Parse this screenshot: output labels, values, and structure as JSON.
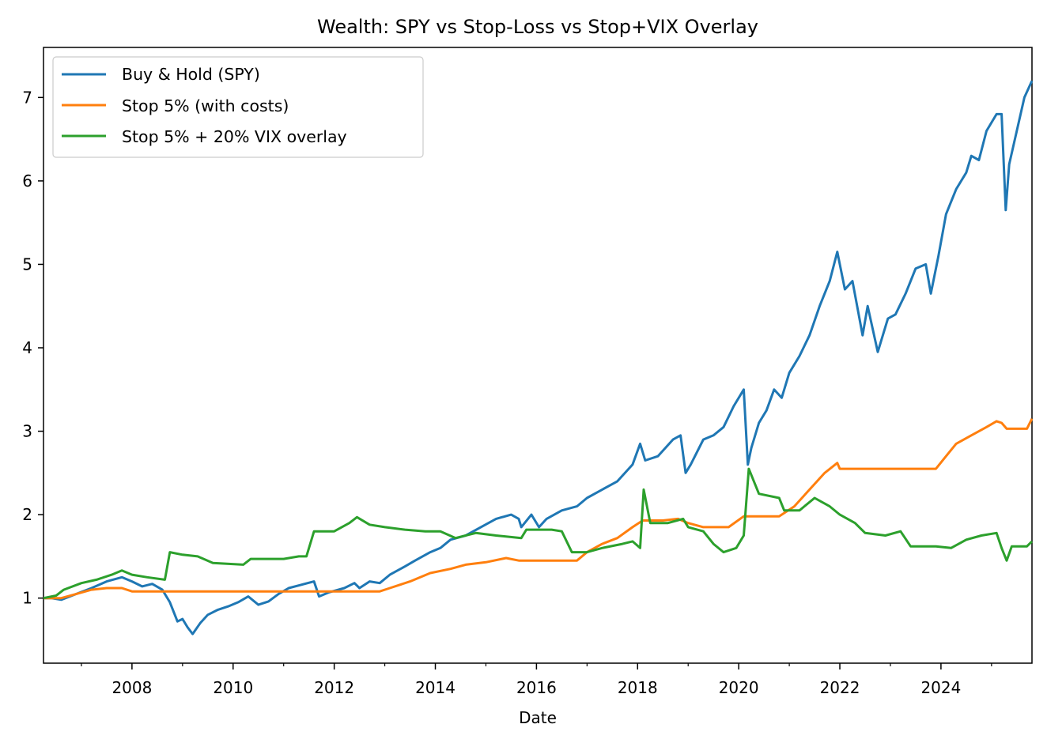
{
  "chart_data": {
    "type": "line",
    "title": "Wealth: SPY vs Stop-Loss vs Stop+VIX Overlay",
    "xlabel": "Date",
    "ylabel": "",
    "xlim": [
      2006.25,
      2025.8
    ],
    "ylim": [
      0.22,
      7.6
    ],
    "x_ticks": [
      2008,
      2010,
      2012,
      2014,
      2016,
      2018,
      2020,
      2022,
      2024
    ],
    "x_tick_labels": [
      "2008",
      "2010",
      "2012",
      "2014",
      "2016",
      "2018",
      "2020",
      "2022",
      "2024"
    ],
    "y_ticks": [
      1,
      2,
      3,
      4,
      5,
      6,
      7
    ],
    "y_tick_labels": [
      "1",
      "2",
      "3",
      "4",
      "5",
      "6",
      "7"
    ],
    "grid": false,
    "legend_position": "top-left",
    "series": [
      {
        "name": "Buy & Hold (SPY)",
        "color": "#1f77b4",
        "points": [
          [
            2006.25,
            1.0
          ],
          [
            2006.4,
            1.0
          ],
          [
            2006.6,
            0.98
          ],
          [
            2006.9,
            1.05
          ],
          [
            2007.2,
            1.12
          ],
          [
            2007.5,
            1.2
          ],
          [
            2007.8,
            1.25
          ],
          [
            2008.0,
            1.2
          ],
          [
            2008.2,
            1.14
          ],
          [
            2008.4,
            1.17
          ],
          [
            2008.6,
            1.1
          ],
          [
            2008.75,
            0.95
          ],
          [
            2008.9,
            0.72
          ],
          [
            2009.0,
            0.75
          ],
          [
            2009.1,
            0.65
          ],
          [
            2009.2,
            0.57
          ],
          [
            2009.35,
            0.7
          ],
          [
            2009.5,
            0.8
          ],
          [
            2009.7,
            0.86
          ],
          [
            2009.9,
            0.9
          ],
          [
            2010.1,
            0.95
          ],
          [
            2010.3,
            1.02
          ],
          [
            2010.5,
            0.92
          ],
          [
            2010.7,
            0.96
          ],
          [
            2010.9,
            1.05
          ],
          [
            2011.1,
            1.12
          ],
          [
            2011.35,
            1.16
          ],
          [
            2011.6,
            1.2
          ],
          [
            2011.7,
            1.02
          ],
          [
            2011.9,
            1.07
          ],
          [
            2012.2,
            1.12
          ],
          [
            2012.4,
            1.18
          ],
          [
            2012.5,
            1.12
          ],
          [
            2012.7,
            1.2
          ],
          [
            2012.9,
            1.18
          ],
          [
            2013.1,
            1.28
          ],
          [
            2013.4,
            1.38
          ],
          [
            2013.6,
            1.45
          ],
          [
            2013.9,
            1.55
          ],
          [
            2014.1,
            1.6
          ],
          [
            2014.3,
            1.7
          ],
          [
            2014.6,
            1.75
          ],
          [
            2014.9,
            1.85
          ],
          [
            2015.2,
            1.95
          ],
          [
            2015.5,
            2.0
          ],
          [
            2015.65,
            1.95
          ],
          [
            2015.7,
            1.85
          ],
          [
            2015.9,
            2.0
          ],
          [
            2016.05,
            1.85
          ],
          [
            2016.2,
            1.95
          ],
          [
            2016.5,
            2.05
          ],
          [
            2016.8,
            2.1
          ],
          [
            2017.0,
            2.2
          ],
          [
            2017.3,
            2.3
          ],
          [
            2017.6,
            2.4
          ],
          [
            2017.9,
            2.6
          ],
          [
            2018.05,
            2.85
          ],
          [
            2018.15,
            2.65
          ],
          [
            2018.4,
            2.7
          ],
          [
            2018.7,
            2.9
          ],
          [
            2018.85,
            2.95
          ],
          [
            2018.95,
            2.5
          ],
          [
            2019.05,
            2.6
          ],
          [
            2019.3,
            2.9
          ],
          [
            2019.5,
            2.95
          ],
          [
            2019.7,
            3.05
          ],
          [
            2019.9,
            3.3
          ],
          [
            2020.1,
            3.5
          ],
          [
            2020.18,
            2.6
          ],
          [
            2020.25,
            2.8
          ],
          [
            2020.4,
            3.1
          ],
          [
            2020.55,
            3.25
          ],
          [
            2020.7,
            3.5
          ],
          [
            2020.85,
            3.4
          ],
          [
            2021.0,
            3.7
          ],
          [
            2021.2,
            3.9
          ],
          [
            2021.4,
            4.15
          ],
          [
            2021.6,
            4.5
          ],
          [
            2021.8,
            4.8
          ],
          [
            2021.95,
            5.15
          ],
          [
            2022.1,
            4.7
          ],
          [
            2022.25,
            4.8
          ],
          [
            2022.45,
            4.15
          ],
          [
            2022.55,
            4.5
          ],
          [
            2022.75,
            3.95
          ],
          [
            2022.95,
            4.35
          ],
          [
            2023.1,
            4.4
          ],
          [
            2023.3,
            4.65
          ],
          [
            2023.5,
            4.95
          ],
          [
            2023.7,
            5.0
          ],
          [
            2023.8,
            4.65
          ],
          [
            2023.95,
            5.1
          ],
          [
            2024.1,
            5.6
          ],
          [
            2024.3,
            5.9
          ],
          [
            2024.5,
            6.1
          ],
          [
            2024.6,
            6.3
          ],
          [
            2024.75,
            6.25
          ],
          [
            2024.9,
            6.6
          ],
          [
            2025.1,
            6.8
          ],
          [
            2025.2,
            6.8
          ],
          [
            2025.28,
            5.65
          ],
          [
            2025.35,
            6.2
          ],
          [
            2025.5,
            6.6
          ],
          [
            2025.65,
            7.0
          ],
          [
            2025.8,
            7.2
          ]
        ]
      },
      {
        "name": "Stop 5% (with costs)",
        "color": "#ff7f0e",
        "points": [
          [
            2006.25,
            1.0
          ],
          [
            2006.6,
            1.0
          ],
          [
            2006.9,
            1.05
          ],
          [
            2007.2,
            1.1
          ],
          [
            2007.5,
            1.12
          ],
          [
            2007.8,
            1.12
          ],
          [
            2008.0,
            1.08
          ],
          [
            2008.3,
            1.08
          ],
          [
            2012.9,
            1.08
          ],
          [
            2013.1,
            1.12
          ],
          [
            2013.5,
            1.2
          ],
          [
            2013.9,
            1.3
          ],
          [
            2014.3,
            1.35
          ],
          [
            2014.6,
            1.4
          ],
          [
            2015.0,
            1.43
          ],
          [
            2015.4,
            1.48
          ],
          [
            2015.65,
            1.45
          ],
          [
            2016.8,
            1.45
          ],
          [
            2017.0,
            1.55
          ],
          [
            2017.3,
            1.65
          ],
          [
            2017.6,
            1.72
          ],
          [
            2017.9,
            1.85
          ],
          [
            2018.1,
            1.93
          ],
          [
            2018.5,
            1.93
          ],
          [
            2018.8,
            1.95
          ],
          [
            2019.0,
            1.9
          ],
          [
            2019.3,
            1.85
          ],
          [
            2019.8,
            1.85
          ],
          [
            2020.1,
            1.98
          ],
          [
            2020.2,
            1.98
          ],
          [
            2020.8,
            1.98
          ],
          [
            2021.1,
            2.1
          ],
          [
            2021.4,
            2.3
          ],
          [
            2021.7,
            2.5
          ],
          [
            2021.95,
            2.62
          ],
          [
            2022.0,
            2.55
          ],
          [
            2023.9,
            2.55
          ],
          [
            2024.1,
            2.7
          ],
          [
            2024.3,
            2.85
          ],
          [
            2024.6,
            2.95
          ],
          [
            2024.9,
            3.05
          ],
          [
            2025.1,
            3.12
          ],
          [
            2025.2,
            3.1
          ],
          [
            2025.3,
            3.03
          ],
          [
            2025.7,
            3.03
          ],
          [
            2025.8,
            3.15
          ]
        ]
      },
      {
        "name": "Stop 5% + 20% VIX overlay",
        "color": "#2ca02c",
        "points": [
          [
            2006.25,
            1.0
          ],
          [
            2006.5,
            1.03
          ],
          [
            2006.65,
            1.1
          ],
          [
            2007.0,
            1.18
          ],
          [
            2007.3,
            1.22
          ],
          [
            2007.6,
            1.28
          ],
          [
            2007.8,
            1.33
          ],
          [
            2008.0,
            1.28
          ],
          [
            2008.3,
            1.25
          ],
          [
            2008.65,
            1.22
          ],
          [
            2008.75,
            1.55
          ],
          [
            2009.0,
            1.52
          ],
          [
            2009.3,
            1.5
          ],
          [
            2009.6,
            1.42
          ],
          [
            2010.2,
            1.4
          ],
          [
            2010.35,
            1.47
          ],
          [
            2011.0,
            1.47
          ],
          [
            2011.3,
            1.5
          ],
          [
            2011.45,
            1.5
          ],
          [
            2011.6,
            1.8
          ],
          [
            2012.0,
            1.8
          ],
          [
            2012.3,
            1.9
          ],
          [
            2012.45,
            1.97
          ],
          [
            2012.7,
            1.88
          ],
          [
            2013.0,
            1.85
          ],
          [
            2013.4,
            1.82
          ],
          [
            2013.8,
            1.8
          ],
          [
            2014.1,
            1.8
          ],
          [
            2014.4,
            1.72
          ],
          [
            2014.8,
            1.78
          ],
          [
            2015.2,
            1.75
          ],
          [
            2015.7,
            1.72
          ],
          [
            2015.8,
            1.82
          ],
          [
            2016.3,
            1.82
          ],
          [
            2016.5,
            1.8
          ],
          [
            2016.7,
            1.55
          ],
          [
            2017.0,
            1.55
          ],
          [
            2017.3,
            1.6
          ],
          [
            2017.7,
            1.65
          ],
          [
            2017.9,
            1.68
          ],
          [
            2018.05,
            1.6
          ],
          [
            2018.12,
            2.3
          ],
          [
            2018.25,
            1.9
          ],
          [
            2018.6,
            1.9
          ],
          [
            2018.9,
            1.95
          ],
          [
            2019.0,
            1.85
          ],
          [
            2019.3,
            1.8
          ],
          [
            2019.5,
            1.65
          ],
          [
            2019.7,
            1.55
          ],
          [
            2019.95,
            1.6
          ],
          [
            2020.1,
            1.75
          ],
          [
            2020.2,
            2.55
          ],
          [
            2020.4,
            2.25
          ],
          [
            2020.8,
            2.2
          ],
          [
            2020.9,
            2.05
          ],
          [
            2021.2,
            2.05
          ],
          [
            2021.5,
            2.2
          ],
          [
            2021.8,
            2.1
          ],
          [
            2022.0,
            2.0
          ],
          [
            2022.3,
            1.9
          ],
          [
            2022.5,
            1.78
          ],
          [
            2022.9,
            1.75
          ],
          [
            2023.2,
            1.8
          ],
          [
            2023.4,
            1.62
          ],
          [
            2023.9,
            1.62
          ],
          [
            2024.2,
            1.6
          ],
          [
            2024.5,
            1.7
          ],
          [
            2024.8,
            1.75
          ],
          [
            2025.1,
            1.78
          ],
          [
            2025.2,
            1.6
          ],
          [
            2025.3,
            1.45
          ],
          [
            2025.4,
            1.62
          ],
          [
            2025.7,
            1.62
          ],
          [
            2025.8,
            1.68
          ]
        ]
      }
    ]
  }
}
